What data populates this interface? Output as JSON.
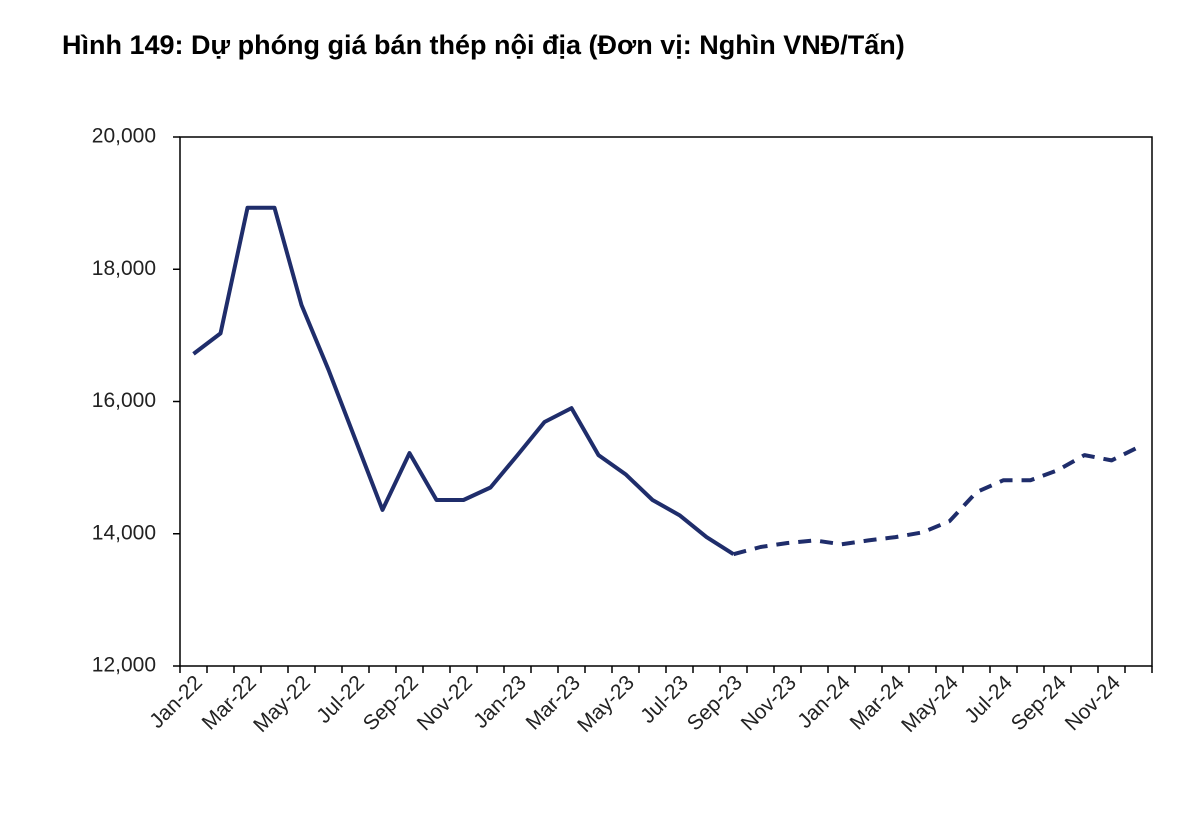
{
  "chart_data": {
    "type": "line",
    "title": "Hình 149: Dự phóng giá bán thép nội địa (Đơn vị: Nghìn VNĐ/Tấn)",
    "categories": [
      "Jan-22",
      null,
      "Mar-22",
      null,
      "May-22",
      null,
      "Jul-22",
      null,
      "Sep-22",
      null,
      "Nov-22",
      null,
      "Jan-23",
      null,
      "Mar-23",
      null,
      "May-23",
      null,
      "Jul-23",
      null,
      "Sep-23",
      null,
      "Nov-23",
      null,
      "Jan-24",
      null,
      "Mar-24",
      null,
      "May-24",
      null,
      "Jul-24",
      null,
      "Sep-24",
      null,
      "Nov-24",
      null
    ],
    "series": [
      {
        "color": "#1f2d6b",
        "dashed": false,
        "values": [
          16720,
          17030,
          18930,
          18930,
          17460,
          16480,
          15420,
          14360,
          15220,
          14510,
          14510,
          14700,
          15190,
          15690,
          15900,
          15190,
          14900,
          14510,
          14280,
          13950,
          13690,
          null,
          null,
          null,
          null,
          null,
          null,
          null,
          null,
          null,
          null,
          null,
          null,
          null,
          null,
          null
        ]
      },
      {
        "color": "#1f2d6b",
        "dashed": true,
        "values": [
          null,
          null,
          null,
          null,
          null,
          null,
          null,
          null,
          null,
          null,
          null,
          null,
          null,
          null,
          null,
          null,
          null,
          null,
          null,
          null,
          13690,
          13800,
          13860,
          13900,
          13840,
          13900,
          13950,
          14020,
          14190,
          14630,
          14810,
          14810,
          14960,
          15190,
          15110,
          15310
        ]
      }
    ],
    "ylim": [
      12000,
      20000
    ],
    "yticks": [
      {
        "value": 12000,
        "label": "12,000"
      },
      {
        "value": 14000,
        "label": "14,000"
      },
      {
        "value": 16000,
        "label": "16,000"
      },
      {
        "value": 18000,
        "label": "18,000"
      },
      {
        "value": 20000,
        "label": "20,000"
      }
    ],
    "grid": false
  }
}
